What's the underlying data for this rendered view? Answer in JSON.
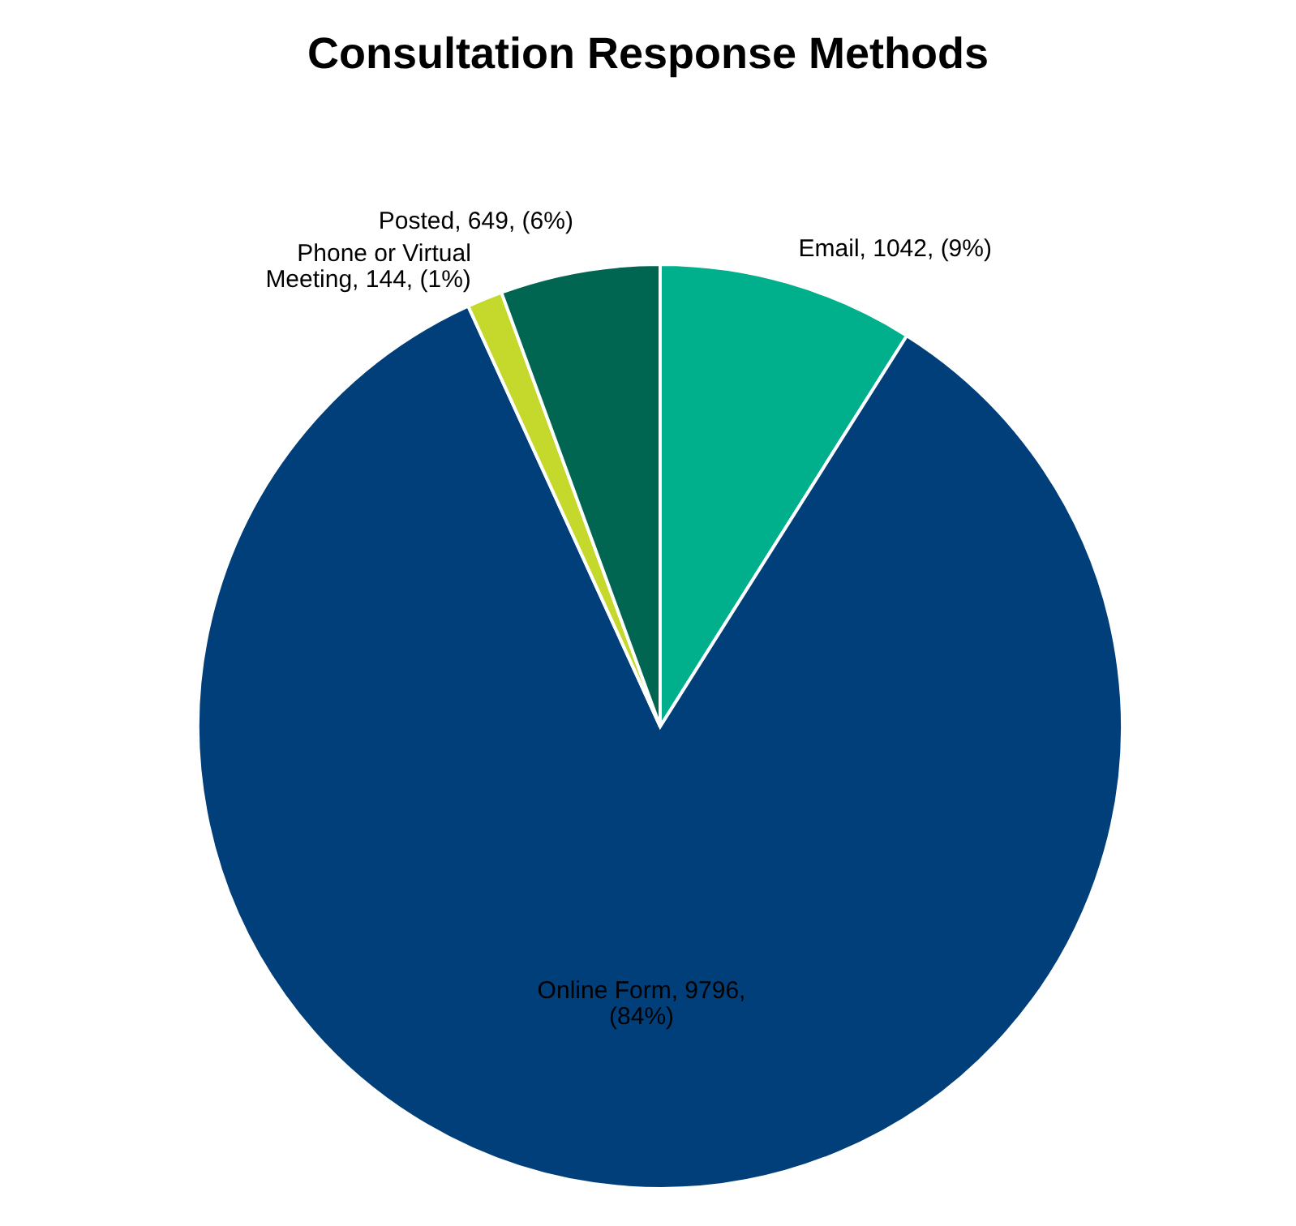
{
  "chart_data": {
    "type": "pie",
    "title": "Consultation Response Methods",
    "categories": [
      "Email",
      "Online Form",
      "Phone or Virtual Meeting",
      "Posted"
    ],
    "values": [
      1042,
      9796,
      144,
      649
    ],
    "colors": [
      "#00b08c",
      "#003f7a",
      "#c5d92d",
      "#006652"
    ],
    "value_labels": [
      "1042, (9%)",
      "9796, (84%)",
      "144, (1%)",
      "649, (6%)"
    ],
    "legend": false
  }
}
